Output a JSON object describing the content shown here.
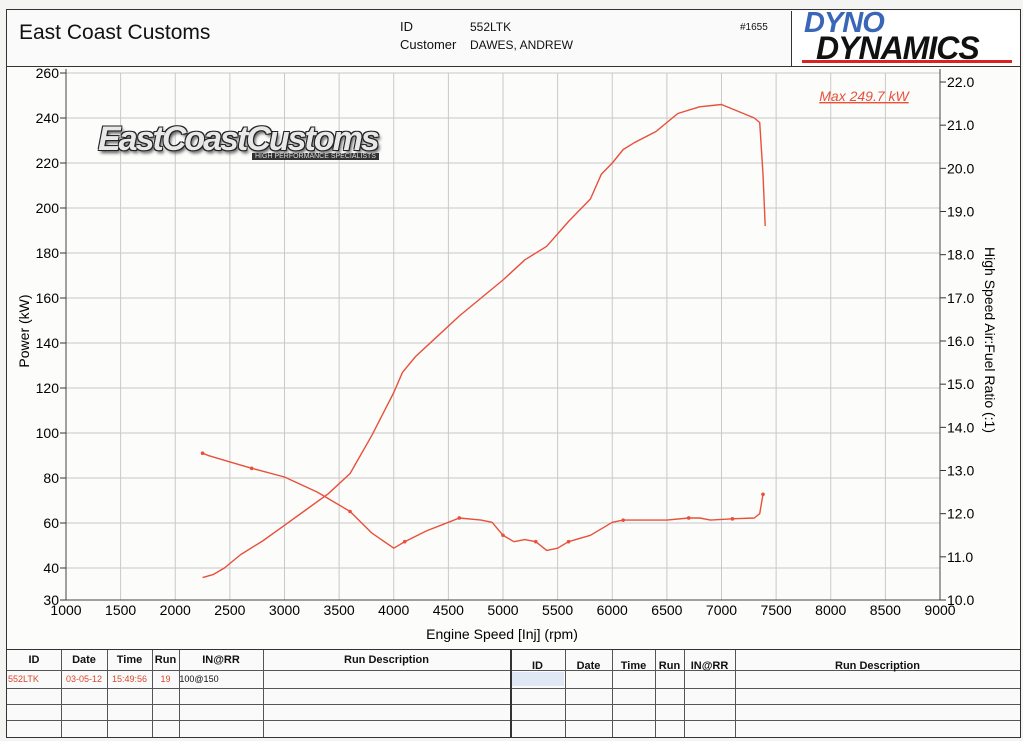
{
  "header": {
    "company": "East Coast Customs",
    "id_label": "ID",
    "id_value": "552LTK",
    "customer_label": "Customer",
    "customer_value": "DAWES, ANDREW",
    "run_number": "#1655",
    "logo_line1": "DYNO",
    "logo_line2": "DYNAMICS"
  },
  "watermark": {
    "text": "EastCoastCustoms",
    "subtext": "HIGH PERFORMANCE SPECIALISTS"
  },
  "chart_data": {
    "type": "line",
    "annotation": "Max 249.7 kW",
    "xlabel": "Engine Speed [Inj] (rpm)",
    "ylabel_left": "Power (kW)",
    "ylabel_right": "High Speed Air:Fuel Ratio (:1)",
    "xlim": [
      1000,
      9000
    ],
    "ylim_left": [
      30,
      260
    ],
    "ylim_right": [
      10.0,
      22.0
    ],
    "x_ticks": [
      "1000",
      "1500",
      "2000",
      "2500",
      "3000",
      "3500",
      "4000",
      "4500",
      "5000",
      "5500",
      "6000",
      "6500",
      "7000",
      "7500",
      "8000",
      "8500",
      "9000"
    ],
    "y_ticks_left": [
      "30",
      "40",
      "60",
      "80",
      "100",
      "120",
      "140",
      "160",
      "180",
      "200",
      "220",
      "240",
      "260"
    ],
    "y_ticks_right": [
      "10.0",
      "11.0",
      "12.0",
      "13.0",
      "14.0",
      "15.0",
      "16.0",
      "17.0",
      "18.0",
      "19.0",
      "20.0",
      "21.0",
      "22.0"
    ],
    "grid": true,
    "line_color": "#e8503a",
    "series": [
      {
        "axis": "left",
        "x": [
          2250,
          2350,
          2450,
          2600,
          2800,
          3000,
          3200,
          3400,
          3600,
          3800,
          4000,
          4080,
          4200,
          4400,
          4600,
          4800,
          5000,
          5200,
          5400,
          5600,
          5800,
          5900,
          6000,
          6100,
          6200,
          6400,
          6500,
          6600,
          6800,
          7000,
          7100,
          7200,
          7300,
          7350,
          7380,
          7400
        ],
        "y": [
          37,
          38,
          40,
          46,
          52,
          59,
          66,
          73,
          82,
          99,
          118,
          127,
          134,
          143,
          152,
          160,
          168,
          177,
          183,
          194,
          204,
          215,
          220,
          226,
          229,
          234,
          238,
          242,
          245,
          246,
          244,
          242,
          240,
          238,
          215,
          192
        ]
      },
      {
        "axis": "right",
        "x": [
          2250,
          2300,
          2500,
          2700,
          3000,
          3300,
          3600,
          3800,
          4000,
          4100,
          4300,
          4500,
          4600,
          4800,
          4900,
          5000,
          5100,
          5200,
          5300,
          5400,
          5500,
          5600,
          5800,
          6000,
          6100,
          6300,
          6500,
          6700,
          6800,
          6900,
          7100,
          7300,
          7350,
          7380
        ],
        "y": [
          13.4,
          13.35,
          13.2,
          13.05,
          12.85,
          12.5,
          12.05,
          11.55,
          11.2,
          11.35,
          11.6,
          11.8,
          11.9,
          11.85,
          11.8,
          11.5,
          11.35,
          11.4,
          11.35,
          11.15,
          11.2,
          11.35,
          11.5,
          11.8,
          11.85,
          11.85,
          11.85,
          11.9,
          11.9,
          11.85,
          11.88,
          11.9,
          12.0,
          12.45
        ]
      }
    ]
  },
  "table": {
    "headers_left": [
      "ID",
      "Date",
      "Time",
      "Run",
      "IN@RR",
      "Run Description"
    ],
    "headers_right": [
      "ID",
      "Date",
      "Time",
      "Run",
      "IN@RR",
      "Run Description"
    ],
    "row": {
      "id": "552LTK",
      "date": "03-05-12",
      "time": "15:49:56",
      "run": "19",
      "inrr": "100@150",
      "desc": ""
    }
  }
}
